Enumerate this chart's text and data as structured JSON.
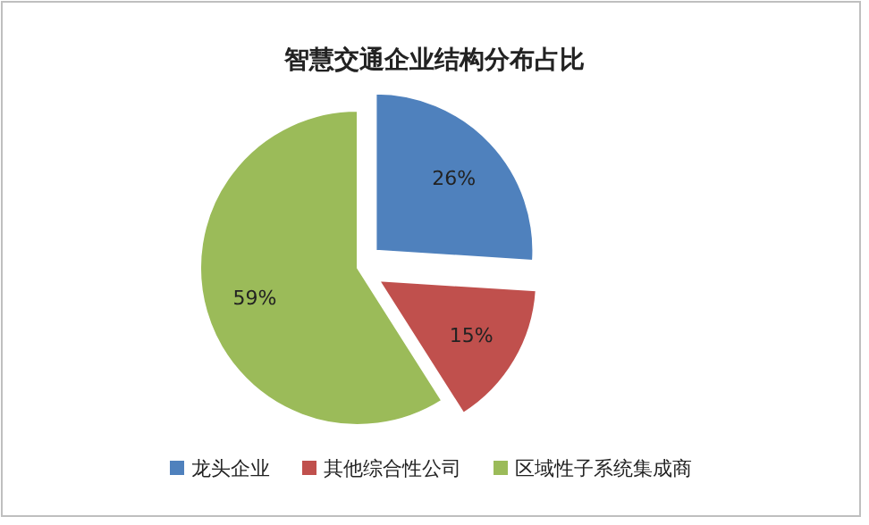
{
  "chart_data": {
    "type": "pie",
    "title": "智慧交通企业结构分布占比",
    "categories": [
      "龙头企业",
      "其他综合性公司",
      "区域性子系统集成商"
    ],
    "values": [
      26,
      15,
      59
    ],
    "value_labels": [
      "26%",
      "15%",
      "59%"
    ],
    "colors": [
      "#4f81bd",
      "#c0504d",
      "#9bbb59"
    ],
    "legend": "bottom"
  }
}
